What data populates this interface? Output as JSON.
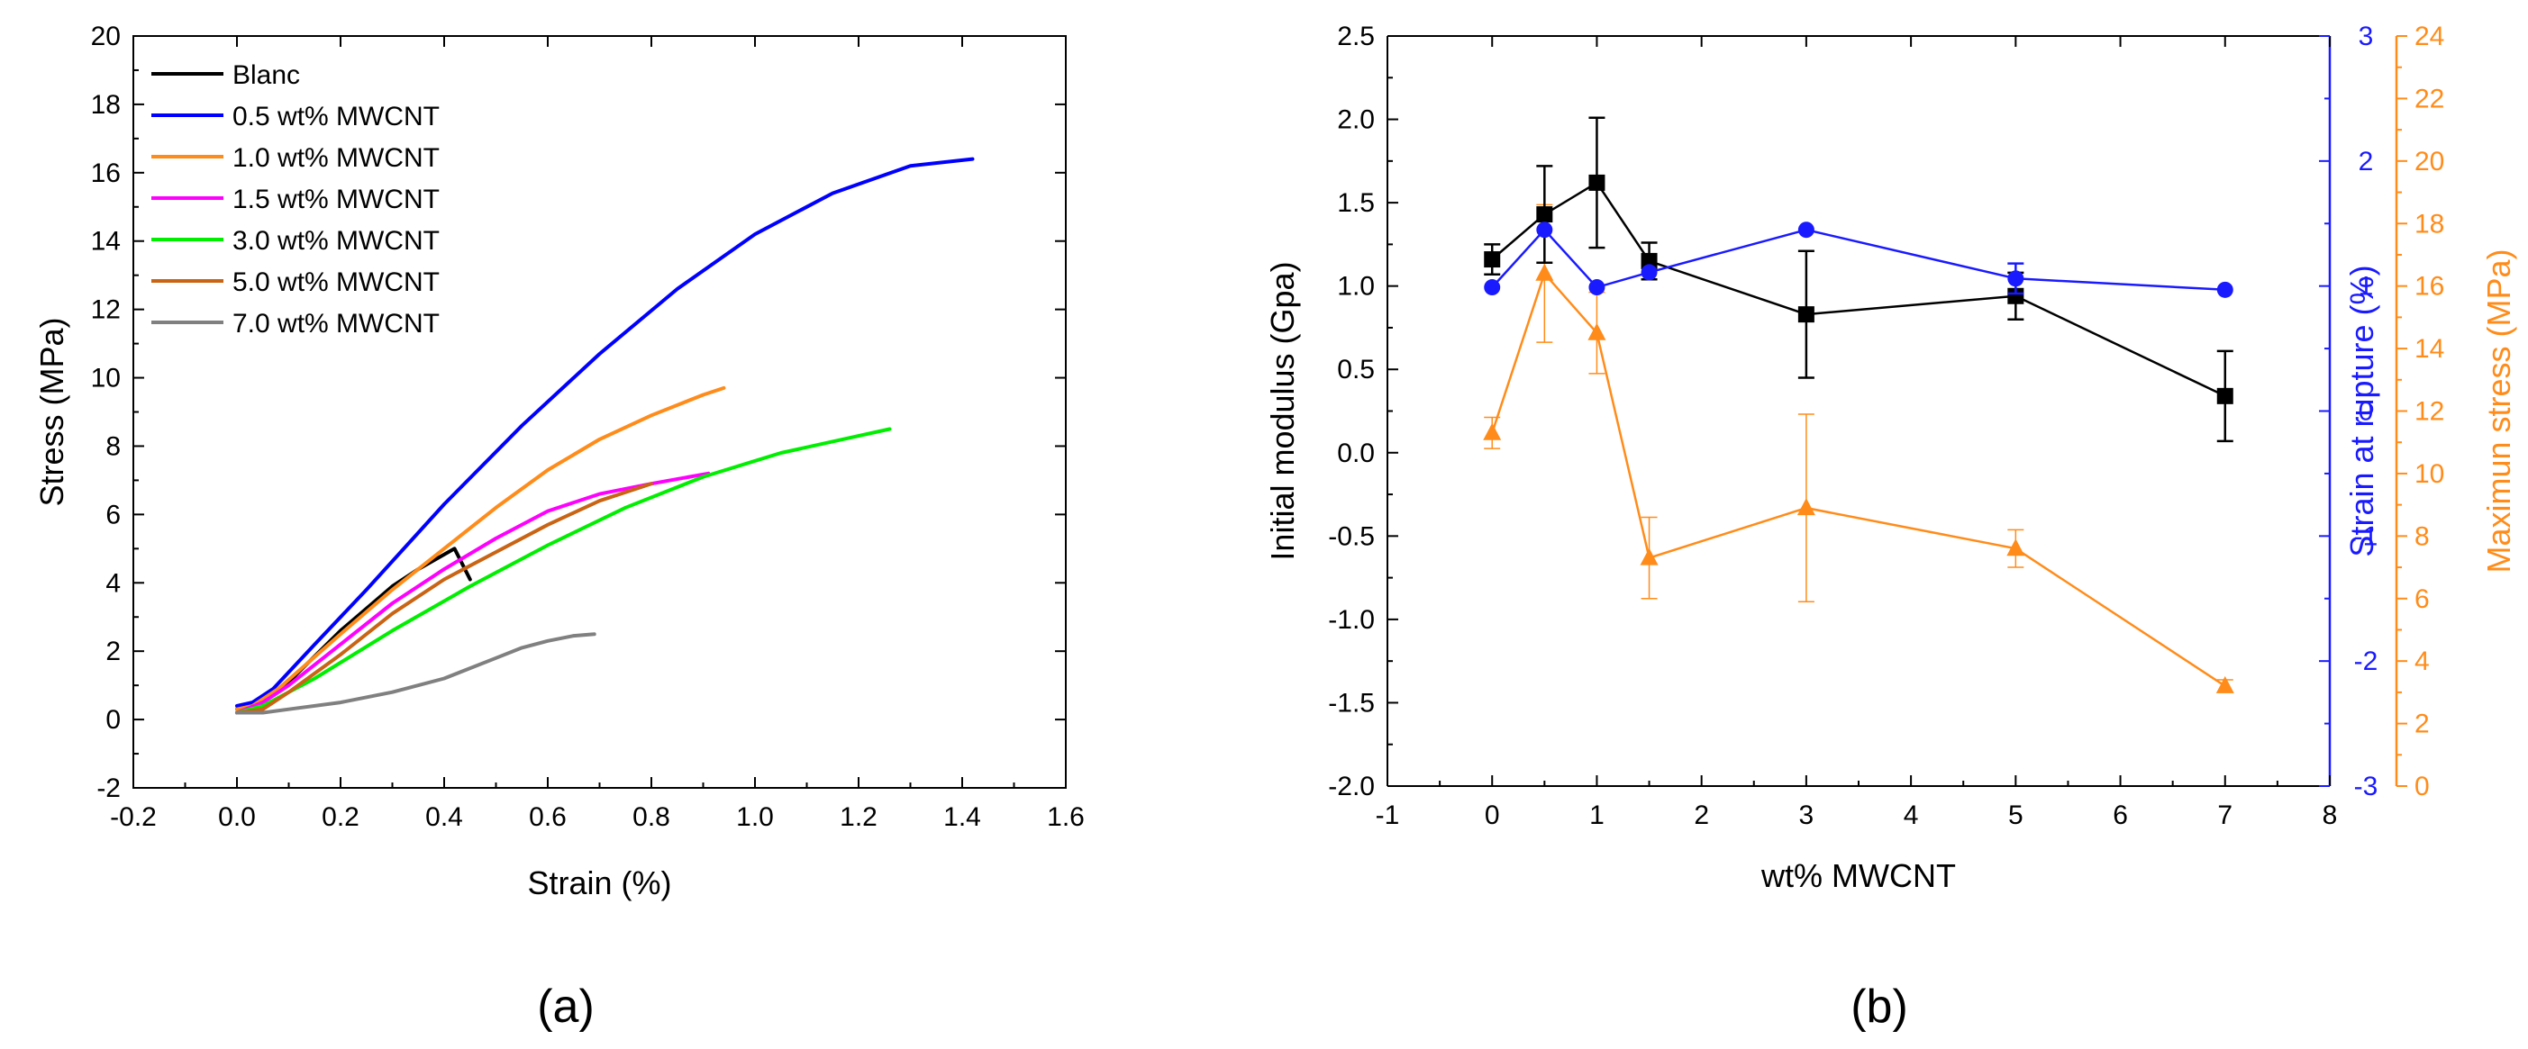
{
  "panel_labels": {
    "a": "(a)",
    "b": "(b)"
  },
  "chart_data": [
    {
      "type": "line",
      "panel": "a",
      "title": "",
      "xlabel": "Strain (%)",
      "ylabel": "Stress (MPa)",
      "xlim": [
        -0.2,
        1.6
      ],
      "ylim": [
        -2,
        20
      ],
      "xticks": [
        -0.2,
        0.0,
        0.2,
        0.4,
        0.6,
        0.8,
        1.0,
        1.2,
        1.4,
        1.6
      ],
      "xtick_labels": [
        "-0.2",
        "0.0",
        "0.2",
        "0.4",
        "0.6",
        "0.8",
        "1.0",
        "1.2",
        "1.4",
        "1.6"
      ],
      "yticks": [
        -2,
        0,
        2,
        4,
        6,
        8,
        10,
        12,
        14,
        16,
        18,
        20
      ],
      "ytick_labels": [
        "-2",
        "0",
        "2",
        "4",
        "6",
        "8",
        "10",
        "12",
        "14",
        "16",
        "18",
        "20"
      ],
      "legend_position": "top-left",
      "series": [
        {
          "name": "Blanc",
          "color": "#000000",
          "x": [
            0.0,
            0.05,
            0.1,
            0.2,
            0.3,
            0.35,
            0.42,
            0.45
          ],
          "y": [
            0.3,
            0.5,
            1.1,
            2.6,
            3.9,
            4.4,
            5.0,
            4.1
          ]
        },
        {
          "name": "0.5 wt% MWCNT",
          "color": "#0000ff",
          "x": [
            0.0,
            0.03,
            0.07,
            0.15,
            0.25,
            0.4,
            0.55,
            0.7,
            0.85,
            1.0,
            1.15,
            1.3,
            1.42
          ],
          "y": [
            0.4,
            0.5,
            0.9,
            2.2,
            3.8,
            6.3,
            8.6,
            10.7,
            12.6,
            14.2,
            15.4,
            16.2,
            16.4
          ]
        },
        {
          "name": "1.0 wt% MWCNT",
          "color": "#ff8c1a",
          "x": [
            0.0,
            0.03,
            0.08,
            0.2,
            0.3,
            0.4,
            0.5,
            0.6,
            0.7,
            0.8,
            0.9,
            0.94
          ],
          "y": [
            0.3,
            0.4,
            0.9,
            2.5,
            3.8,
            5.0,
            6.2,
            7.3,
            8.2,
            8.9,
            9.5,
            9.7
          ]
        },
        {
          "name": "1.5 wt% MWCNT",
          "color": "#ff00ff",
          "x": [
            0.0,
            0.05,
            0.1,
            0.2,
            0.3,
            0.4,
            0.5,
            0.6,
            0.7,
            0.8,
            0.91
          ],
          "y": [
            0.2,
            0.5,
            1.0,
            2.2,
            3.4,
            4.4,
            5.3,
            6.1,
            6.6,
            6.9,
            7.2
          ]
        },
        {
          "name": "3.0 wt% MWCNT",
          "color": "#00ee00",
          "x": [
            0.0,
            0.05,
            0.15,
            0.3,
            0.45,
            0.6,
            0.75,
            0.9,
            1.05,
            1.2,
            1.26
          ],
          "y": [
            0.2,
            0.4,
            1.2,
            2.6,
            3.9,
            5.1,
            6.2,
            7.1,
            7.8,
            8.3,
            8.5
          ]
        },
        {
          "name": "5.0 wt% MWCNT",
          "color": "#c86414",
          "x": [
            0.0,
            0.05,
            0.1,
            0.2,
            0.3,
            0.4,
            0.5,
            0.6,
            0.7,
            0.8
          ],
          "y": [
            0.2,
            0.3,
            0.8,
            1.9,
            3.1,
            4.1,
            4.9,
            5.7,
            6.4,
            6.9
          ]
        },
        {
          "name": "7.0 wt% MWCNT",
          "color": "#808080",
          "x": [
            0.0,
            0.05,
            0.1,
            0.2,
            0.3,
            0.4,
            0.5,
            0.55,
            0.6,
            0.65,
            0.69
          ],
          "y": [
            0.2,
            0.2,
            0.3,
            0.5,
            0.8,
            1.2,
            1.8,
            2.1,
            2.3,
            2.45,
            2.5
          ]
        }
      ]
    },
    {
      "type": "line",
      "panel": "b",
      "title": "",
      "xlabel": "wt% MWCNT",
      "xlim": [
        -1,
        8
      ],
      "xticks": [
        -1,
        0,
        1,
        2,
        3,
        4,
        5,
        6,
        7,
        8
      ],
      "xtick_labels": [
        "-1",
        "0",
        "1",
        "2",
        "3",
        "4",
        "5",
        "6",
        "7",
        "8"
      ],
      "y_axes": {
        "left": {
          "label": "Initial modulus (Gpa)",
          "color": "#000000",
          "lim": [
            -2.0,
            2.5
          ],
          "ticks": [
            -2.0,
            -1.5,
            -1.0,
            -0.5,
            0.0,
            0.5,
            1.0,
            1.5,
            2.0,
            2.5
          ],
          "tick_labels": [
            "-2.0",
            "-1.5",
            "-1.0",
            "-0.5",
            "0.0",
            "0.5",
            "1.0",
            "1.5",
            "2.0",
            "2.5"
          ]
        },
        "right1": {
          "label": "Strain at rupture (%)",
          "color": "#1a1aff",
          "lim": [
            -3,
            3
          ],
          "ticks": [
            -3,
            -2,
            -1,
            0,
            1,
            2,
            3
          ],
          "tick_labels": [
            "-3",
            "-2",
            "-1",
            "0",
            "1",
            "2",
            "3"
          ]
        },
        "right2": {
          "label": "Maximun stress (MPa)",
          "color": "#ff8c1a",
          "lim": [
            0,
            24
          ],
          "ticks": [
            0,
            2,
            4,
            6,
            8,
            10,
            12,
            14,
            16,
            18,
            20,
            22,
            24
          ],
          "tick_labels": [
            "0",
            "2",
            "4",
            "6",
            "8",
            "10",
            "12",
            "14",
            "16",
            "18",
            "20",
            "22",
            "24"
          ]
        }
      },
      "series": [
        {
          "name": "Initial modulus",
          "axis": "left",
          "color": "#000000",
          "marker": "square",
          "x": [
            0,
            0.5,
            1,
            1.5,
            3,
            5,
            7
          ],
          "y": [
            1.16,
            1.43,
            1.62,
            1.15,
            0.83,
            0.94,
            0.34
          ],
          "err": [
            0.09,
            0.29,
            0.39,
            0.11,
            0.38,
            0.14,
            0.27
          ]
        },
        {
          "name": "Strain at rupture",
          "axis": "right1",
          "color": "#1a1aff",
          "marker": "circle",
          "x": [
            0,
            0.5,
            1,
            1.5,
            3,
            5,
            7
          ],
          "y": [
            0.99,
            1.45,
            0.99,
            1.11,
            1.45,
            1.06,
            0.97
          ],
          "err": [
            0,
            0,
            0,
            0,
            0,
            0.12,
            0
          ]
        },
        {
          "name": "Maximun stress",
          "axis": "right2",
          "color": "#ff8c1a",
          "marker": "triangle",
          "x": [
            0,
            0.5,
            1,
            1.5,
            3,
            5,
            7
          ],
          "y": [
            11.3,
            16.4,
            14.5,
            7.3,
            8.9,
            7.6,
            3.2
          ],
          "err": [
            0.5,
            2.2,
            1.3,
            1.3,
            3.0,
            0.6,
            0.2
          ]
        }
      ]
    }
  ]
}
